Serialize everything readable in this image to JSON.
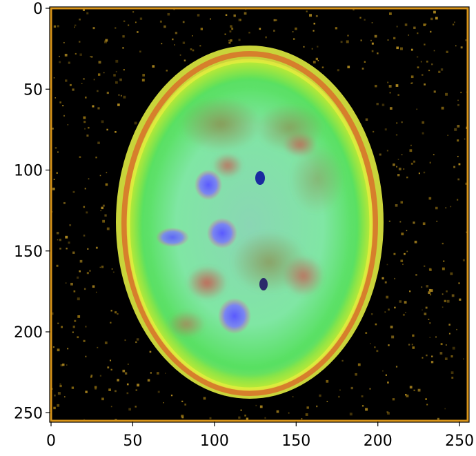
{
  "image": {
    "subject": "axial brain MRI scan, false-color composite",
    "colors": {
      "background": "#000000",
      "frame": "#d9951a",
      "noise": "#8a6a10",
      "tissue_main": "#7ee0a0",
      "tissue_edge": "#c6e836",
      "rim": "#e06a2a",
      "blob_blue": "#5a5aff",
      "blob_red": "#d05a5a"
    }
  },
  "axes": {
    "xlim": [
      0,
      255
    ],
    "ylim": [
      255,
      0
    ],
    "x_ticks": [
      "0",
      "50",
      "100",
      "150",
      "200",
      "250"
    ],
    "y_ticks": [
      "0",
      "50",
      "100",
      "150",
      "200",
      "250"
    ]
  }
}
